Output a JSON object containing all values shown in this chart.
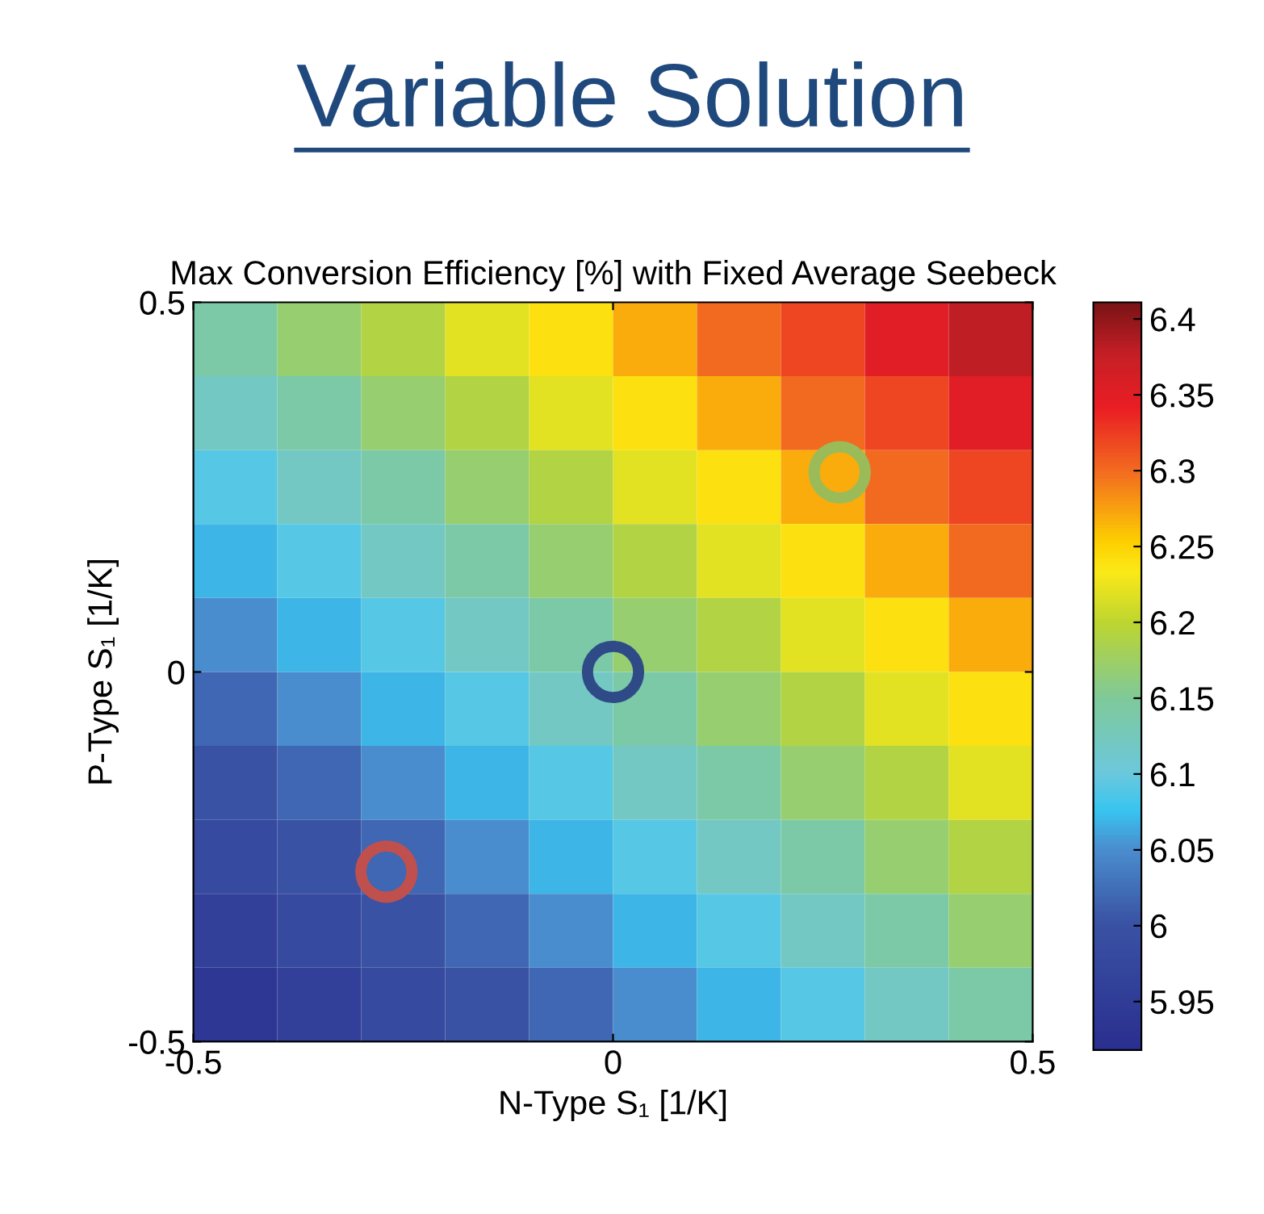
{
  "chart_data": {
    "type": "heatmap",
    "title": "Variable Solution",
    "subtitle": "Max Conversion Efficiency [%] with Fixed Average Seebeck",
    "xlabel": "N-Type S₁ [1/K]",
    "ylabel": "P-Type S₁ [1/K]",
    "x": [
      -0.45,
      -0.35,
      -0.25,
      -0.15,
      -0.05,
      0.05,
      0.15,
      0.25,
      0.35,
      0.45
    ],
    "y": [
      0.45,
      0.35,
      0.25,
      0.15,
      0.05,
      -0.05,
      -0.15,
      -0.25,
      -0.35,
      -0.45
    ],
    "cells": [
      [
        6.14,
        6.17,
        6.19,
        6.22,
        6.24,
        6.27,
        6.3,
        6.32,
        6.35,
        6.38
      ],
      [
        6.12,
        6.14,
        6.17,
        6.19,
        6.22,
        6.24,
        6.27,
        6.3,
        6.32,
        6.35
      ],
      [
        6.09,
        6.12,
        6.14,
        6.17,
        6.19,
        6.22,
        6.24,
        6.27,
        6.3,
        6.32
      ],
      [
        6.07,
        6.09,
        6.12,
        6.14,
        6.17,
        6.19,
        6.22,
        6.24,
        6.27,
        6.3
      ],
      [
        6.05,
        6.07,
        6.09,
        6.12,
        6.14,
        6.17,
        6.19,
        6.22,
        6.24,
        6.27
      ],
      [
        6.02,
        6.05,
        6.07,
        6.09,
        6.12,
        6.14,
        6.17,
        6.19,
        6.22,
        6.24
      ],
      [
        6.0,
        6.02,
        6.05,
        6.07,
        6.09,
        6.12,
        6.14,
        6.17,
        6.19,
        6.22
      ],
      [
        5.98,
        6.0,
        6.02,
        6.05,
        6.07,
        6.09,
        6.12,
        6.14,
        6.17,
        6.19
      ],
      [
        5.96,
        5.98,
        6.0,
        6.02,
        6.05,
        6.07,
        6.09,
        6.12,
        6.14,
        6.17
      ],
      [
        5.94,
        5.96,
        5.98,
        6.0,
        6.02,
        6.05,
        6.07,
        6.09,
        6.12,
        6.14
      ]
    ],
    "xlim": [
      -0.5,
      0.5
    ],
    "ylim": [
      -0.5,
      0.5
    ],
    "xticks": [
      -0.5,
      0,
      0.5
    ],
    "yticks": [
      -0.5,
      0,
      0.5
    ],
    "clim": [
      5.918,
      6.411
    ],
    "cticks": [
      5.95,
      6,
      6.05,
      6.1,
      6.15,
      6.2,
      6.25,
      6.3,
      6.35,
      6.4
    ],
    "series": [
      {
        "type": "scatter",
        "x": [
          -0.27,
          0,
          0.27
        ],
        "values": [
          -0.27,
          0,
          0.27
        ],
        "colors": [
          "#c0504d",
          "#2f4b87",
          "#9bbb59"
        ],
        "marker": "circle"
      }
    ],
    "grid": false
  }
}
